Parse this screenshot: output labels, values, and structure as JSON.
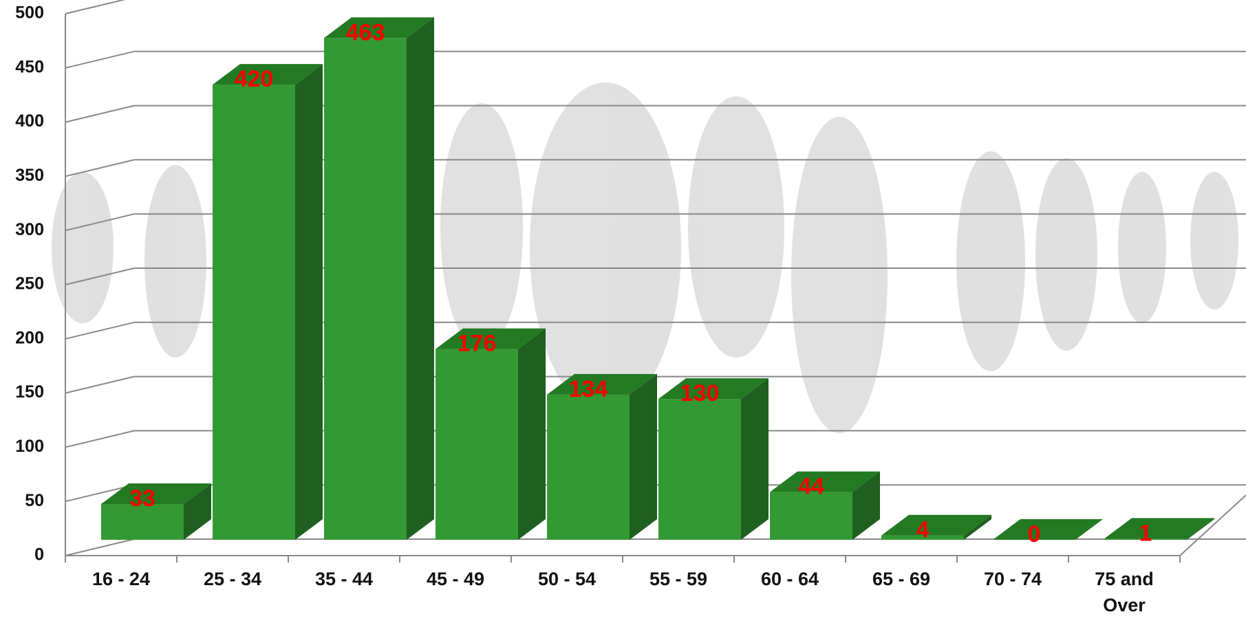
{
  "chart_data": {
    "type": "bar3d",
    "categories": [
      "16 - 24",
      "25 - 34",
      "35 - 44",
      "45 - 49",
      "50 - 54",
      "55 - 59",
      "60 - 64",
      "65 - 69",
      "70 - 74",
      "75 and Over"
    ],
    "values": [
      33,
      420,
      463,
      176,
      134,
      130,
      44,
      4,
      0,
      1
    ],
    "color": "#339933",
    "label_color": "#ff0000",
    "ylim": [
      0,
      500
    ],
    "yticks": [
      0,
      50,
      100,
      150,
      200,
      250,
      300,
      350,
      400,
      450,
      500
    ],
    "grid": true
  }
}
